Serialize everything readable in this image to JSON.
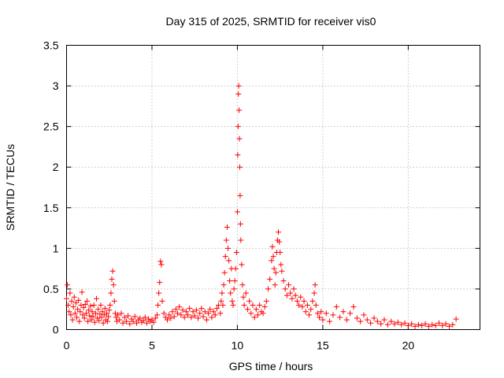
{
  "chart_data": {
    "type": "scatter",
    "title": "Day 315 of 2025, SRMTID for receiver vis0",
    "xlabel": "GPS time / hours",
    "ylabel": "SRMTID / TECUs",
    "xlim": [
      0,
      24.2
    ],
    "ylim": [
      0,
      3.5
    ],
    "xticks": [
      0,
      5,
      10,
      15,
      20
    ],
    "xtick_labels": [
      "0",
      "5",
      "10",
      "15",
      "20"
    ],
    "yticks": [
      0,
      0.5,
      1,
      1.5,
      2,
      2.5,
      3,
      3.5
    ],
    "ytick_labels": [
      "0",
      "0.5",
      "1",
      "1.5",
      "2",
      "2.5",
      "3",
      "3.5"
    ],
    "grid": true,
    "marker": "plus",
    "series": [
      {
        "name": "SRMTID",
        "color": "#ff0000",
        "points": [
          [
            0.0,
            0.38
          ],
          [
            0.05,
            0.55
          ],
          [
            0.1,
            0.3
          ],
          [
            0.15,
            0.22
          ],
          [
            0.2,
            0.45
          ],
          [
            0.25,
            0.18
          ],
          [
            0.3,
            0.35
          ],
          [
            0.35,
            0.12
          ],
          [
            0.4,
            0.28
          ],
          [
            0.45,
            0.4
          ],
          [
            0.5,
            0.2
          ],
          [
            0.55,
            0.33
          ],
          [
            0.6,
            0.15
          ],
          [
            0.65,
            0.25
          ],
          [
            0.7,
            0.36
          ],
          [
            0.75,
            0.1
          ],
          [
            0.8,
            0.22
          ],
          [
            0.85,
            0.3
          ],
          [
            0.9,
            0.46
          ],
          [
            0.95,
            0.18
          ],
          [
            1.0,
            0.27
          ],
          [
            1.05,
            0.14
          ],
          [
            1.1,
            0.31
          ],
          [
            1.15,
            0.2
          ],
          [
            1.2,
            0.35
          ],
          [
            1.25,
            0.1
          ],
          [
            1.3,
            0.24
          ],
          [
            1.35,
            0.17
          ],
          [
            1.4,
            0.29
          ],
          [
            1.45,
            0.12
          ],
          [
            1.5,
            0.22
          ],
          [
            1.55,
            0.16
          ],
          [
            1.6,
            0.3
          ],
          [
            1.65,
            0.09
          ],
          [
            1.7,
            0.2
          ],
          [
            1.75,
            0.38
          ],
          [
            1.8,
            0.14
          ],
          [
            1.85,
            0.25
          ],
          [
            1.9,
            0.11
          ],
          [
            1.95,
            0.19
          ],
          [
            2.0,
            0.3
          ],
          [
            2.05,
            0.15
          ],
          [
            2.1,
            0.22
          ],
          [
            2.15,
            0.08
          ],
          [
            2.2,
            0.18
          ],
          [
            2.25,
            0.26
          ],
          [
            2.3,
            0.12
          ],
          [
            2.35,
            0.2
          ],
          [
            2.4,
            0.1
          ],
          [
            2.45,
            0.16
          ],
          [
            2.5,
            0.24
          ],
          [
            2.55,
            0.3
          ],
          [
            2.6,
            0.45
          ],
          [
            2.65,
            0.62
          ],
          [
            2.7,
            0.72
          ],
          [
            2.75,
            0.55
          ],
          [
            2.8,
            0.35
          ],
          [
            2.85,
            0.2
          ],
          [
            2.9,
            0.15
          ],
          [
            2.95,
            0.1
          ],
          [
            3.0,
            0.18
          ],
          [
            3.1,
            0.12
          ],
          [
            3.2,
            0.2
          ],
          [
            3.3,
            0.08
          ],
          [
            3.4,
            0.15
          ],
          [
            3.5,
            0.1
          ],
          [
            3.6,
            0.17
          ],
          [
            3.7,
            0.07
          ],
          [
            3.8,
            0.13
          ],
          [
            3.9,
            0.1
          ],
          [
            4.0,
            0.16
          ],
          [
            4.1,
            0.08
          ],
          [
            4.2,
            0.12
          ],
          [
            4.3,
            0.14
          ],
          [
            4.4,
            0.09
          ],
          [
            4.5,
            0.11
          ],
          [
            4.6,
            0.15
          ],
          [
            4.7,
            0.08
          ],
          [
            4.8,
            0.13
          ],
          [
            4.9,
            0.1
          ],
          [
            5.0,
            0.12
          ],
          [
            5.1,
            0.09
          ],
          [
            5.2,
            0.14
          ],
          [
            5.3,
            0.18
          ],
          [
            5.35,
            0.3
          ],
          [
            5.4,
            0.45
          ],
          [
            5.45,
            0.58
          ],
          [
            5.5,
            0.84
          ],
          [
            5.55,
            0.8
          ],
          [
            5.6,
            0.35
          ],
          [
            5.7,
            0.2
          ],
          [
            5.8,
            0.15
          ],
          [
            5.9,
            0.12
          ],
          [
            6.0,
            0.18
          ],
          [
            6.1,
            0.14
          ],
          [
            6.2,
            0.22
          ],
          [
            6.3,
            0.16
          ],
          [
            6.4,
            0.25
          ],
          [
            6.5,
            0.2
          ],
          [
            6.6,
            0.28
          ],
          [
            6.7,
            0.18
          ],
          [
            6.8,
            0.24
          ],
          [
            6.9,
            0.15
          ],
          [
            7.0,
            0.22
          ],
          [
            7.1,
            0.18
          ],
          [
            7.2,
            0.26
          ],
          [
            7.3,
            0.15
          ],
          [
            7.4,
            0.22
          ],
          [
            7.5,
            0.17
          ],
          [
            7.6,
            0.24
          ],
          [
            7.7,
            0.14
          ],
          [
            7.8,
            0.2
          ],
          [
            7.9,
            0.26
          ],
          [
            8.0,
            0.16
          ],
          [
            8.1,
            0.22
          ],
          [
            8.2,
            0.12
          ],
          [
            8.3,
            0.2
          ],
          [
            8.4,
            0.25
          ],
          [
            8.5,
            0.15
          ],
          [
            8.6,
            0.22
          ],
          [
            8.7,
            0.18
          ],
          [
            8.8,
            0.26
          ],
          [
            8.9,
            0.3
          ],
          [
            9.0,
            0.2
          ],
          [
            9.05,
            0.35
          ],
          [
            9.1,
            0.45
          ],
          [
            9.15,
            0.3
          ],
          [
            9.2,
            0.55
          ],
          [
            9.25,
            0.7
          ],
          [
            9.3,
            0.9
          ],
          [
            9.35,
            1.1
          ],
          [
            9.4,
            1.26
          ],
          [
            9.45,
            1.0
          ],
          [
            9.5,
            0.85
          ],
          [
            9.55,
            0.6
          ],
          [
            9.6,
            0.45
          ],
          [
            9.65,
            0.75
          ],
          [
            9.7,
            0.35
          ],
          [
            9.75,
            0.3
          ],
          [
            9.8,
            0.5
          ],
          [
            9.85,
            0.6
          ],
          [
            9.9,
            0.75
          ],
          [
            9.95,
            0.95
          ],
          [
            10.0,
            1.45
          ],
          [
            10.02,
            2.15
          ],
          [
            10.04,
            2.5
          ],
          [
            10.06,
            2.9
          ],
          [
            10.08,
            3.0
          ],
          [
            10.1,
            2.7
          ],
          [
            10.12,
            2.35
          ],
          [
            10.14,
            2.0
          ],
          [
            10.16,
            1.65
          ],
          [
            10.18,
            1.3
          ],
          [
            10.2,
            1.1
          ],
          [
            10.25,
            0.8
          ],
          [
            10.3,
            0.55
          ],
          [
            10.35,
            0.4
          ],
          [
            10.4,
            0.3
          ],
          [
            10.5,
            0.45
          ],
          [
            10.6,
            0.25
          ],
          [
            10.7,
            0.35
          ],
          [
            10.8,
            0.2
          ],
          [
            10.9,
            0.3
          ],
          [
            11.0,
            0.15
          ],
          [
            11.1,
            0.25
          ],
          [
            11.2,
            0.18
          ],
          [
            11.3,
            0.3
          ],
          [
            11.4,
            0.22
          ],
          [
            11.5,
            0.2
          ],
          [
            11.6,
            0.28
          ],
          [
            11.7,
            0.35
          ],
          [
            11.8,
            0.5
          ],
          [
            11.9,
            0.62
          ],
          [
            12.0,
            0.85
          ],
          [
            12.05,
            1.02
          ],
          [
            12.1,
            0.9
          ],
          [
            12.15,
            0.75
          ],
          [
            12.2,
            0.55
          ],
          [
            12.25,
            0.7
          ],
          [
            12.3,
            0.95
          ],
          [
            12.35,
            1.1
          ],
          [
            12.4,
            1.2
          ],
          [
            12.45,
            1.08
          ],
          [
            12.5,
            0.95
          ],
          [
            12.55,
            0.8
          ],
          [
            12.6,
            0.72
          ],
          [
            12.7,
            0.6
          ],
          [
            12.8,
            0.5
          ],
          [
            12.9,
            0.42
          ],
          [
            13.0,
            0.55
          ],
          [
            13.1,
            0.45
          ],
          [
            13.2,
            0.38
          ],
          [
            13.3,
            0.5
          ],
          [
            13.4,
            0.42
          ],
          [
            13.5,
            0.35
          ],
          [
            13.6,
            0.3
          ],
          [
            13.7,
            0.4
          ],
          [
            13.8,
            0.28
          ],
          [
            13.9,
            0.35
          ],
          [
            14.0,
            0.22
          ],
          [
            14.1,
            0.3
          ],
          [
            14.2,
            0.18
          ],
          [
            14.3,
            0.25
          ],
          [
            14.4,
            0.35
          ],
          [
            14.5,
            0.45
          ],
          [
            14.55,
            0.55
          ],
          [
            14.6,
            0.3
          ],
          [
            14.7,
            0.2
          ],
          [
            14.8,
            0.15
          ],
          [
            14.9,
            0.22
          ],
          [
            15.0,
            0.12
          ],
          [
            15.2,
            0.2
          ],
          [
            15.4,
            0.1
          ],
          [
            15.6,
            0.18
          ],
          [
            15.8,
            0.28
          ],
          [
            16.0,
            0.15
          ],
          [
            16.2,
            0.22
          ],
          [
            16.4,
            0.12
          ],
          [
            16.6,
            0.2
          ],
          [
            16.8,
            0.28
          ],
          [
            17.0,
            0.14
          ],
          [
            17.2,
            0.1
          ],
          [
            17.4,
            0.18
          ],
          [
            17.6,
            0.12
          ],
          [
            17.8,
            0.08
          ],
          [
            18.0,
            0.14
          ],
          [
            18.2,
            0.1
          ],
          [
            18.4,
            0.07
          ],
          [
            18.6,
            0.12
          ],
          [
            18.8,
            0.06
          ],
          [
            19.0,
            0.1
          ],
          [
            19.2,
            0.07
          ],
          [
            19.4,
            0.09
          ],
          [
            19.6,
            0.06
          ],
          [
            19.8,
            0.08
          ],
          [
            20.0,
            0.05
          ],
          [
            20.2,
            0.07
          ],
          [
            20.4,
            0.04
          ],
          [
            20.6,
            0.06
          ],
          [
            20.8,
            0.05
          ],
          [
            21.0,
            0.07
          ],
          [
            21.2,
            0.04
          ],
          [
            21.4,
            0.06
          ],
          [
            21.6,
            0.05
          ],
          [
            21.8,
            0.08
          ],
          [
            22.0,
            0.05
          ],
          [
            22.2,
            0.07
          ],
          [
            22.4,
            0.04
          ],
          [
            22.6,
            0.06
          ],
          [
            22.8,
            0.13
          ]
        ]
      }
    ]
  }
}
